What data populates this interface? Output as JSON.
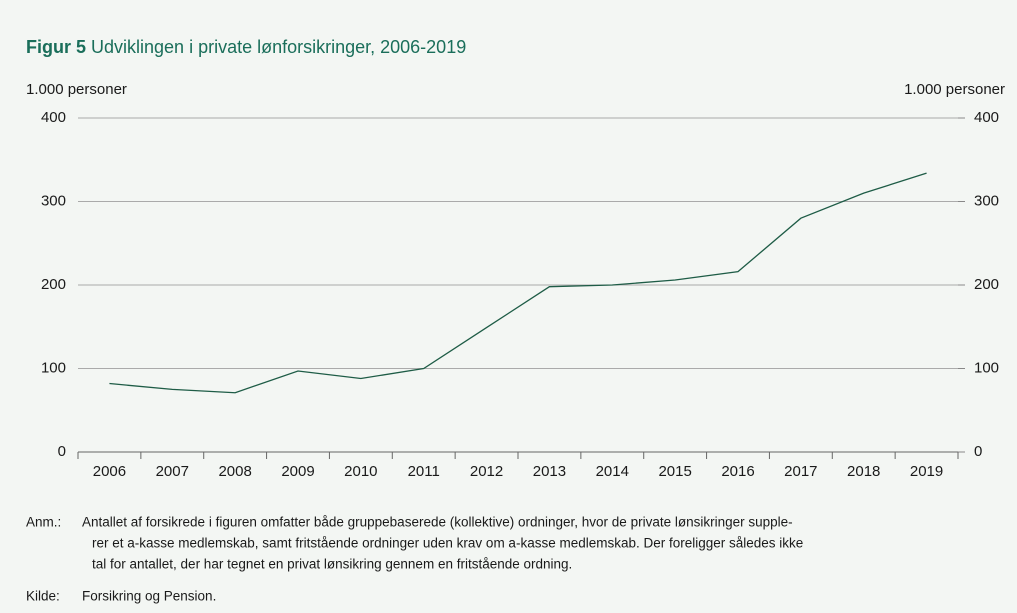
{
  "chart_data": {
    "type": "line",
    "title_prefix": "Figur 5",
    "title": "Udviklingen i private lønforsikringer, 2006-2019",
    "y_label": "1.000 personer",
    "y2_label": "1.000 personer",
    "categories": [
      "2006",
      "2007",
      "2008",
      "2009",
      "2010",
      "2011",
      "2012",
      "2013",
      "2014",
      "2015",
      "2016",
      "2017",
      "2018",
      "2019"
    ],
    "series": [
      {
        "name": "Private lønforsikringer",
        "color": "#1e5c46",
        "values": [
          82,
          75,
          71,
          97,
          88,
          100,
          149,
          198,
          200,
          206,
          216,
          280,
          310,
          334
        ]
      }
    ],
    "ylim": [
      0,
      400
    ],
    "yticks": [
      0,
      100,
      200,
      300,
      400
    ],
    "y2lim": [
      0,
      400
    ],
    "y2ticks": [
      0,
      100,
      200,
      300,
      400
    ],
    "grid": true,
    "note_label": "Anm.:",
    "note_lines": [
      "Antallet af forsikrede i figuren omfatter både gruppebaserede (kollektive) ordninger, hvor de private lønsikringer supple-",
      "rer et a-kasse medlemskab, samt fritstående ordninger uden krav om a-kasse medlemskab. Der foreligger således ikke",
      "tal for antallet, der har tegnet en privat lønsikring gennem en fritstående ordning."
    ],
    "source_label": "Kilde:",
    "source": "Forsikring og Pension."
  }
}
